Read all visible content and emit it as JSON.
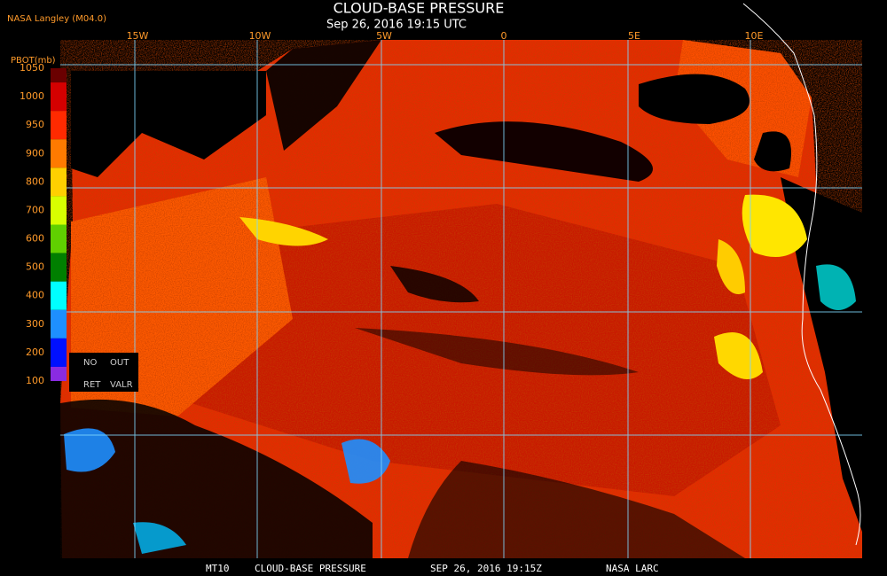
{
  "header": {
    "agency": "NASA Langley (M04.0)",
    "title": "CLOUD-BASE PRESSURE",
    "subtitle": "Sep 26, 2016 19:15 UTC"
  },
  "longitude_labels": [
    "15W",
    "10W",
    "5W",
    "0",
    "5E",
    "10E"
  ],
  "colorbar": {
    "title": "PBOT(mb)",
    "labels": [
      "1050",
      "1000",
      "950",
      "900",
      "800",
      "700",
      "600",
      "500",
      "400",
      "300",
      "200",
      "100"
    ],
    "colors": [
      "#6a0000",
      "#d40000",
      "#ff2a00",
      "#ff7a00",
      "#ffd000",
      "#d8ff00",
      "#60d000",
      "#007f00",
      "#00ffff",
      "#1e8fff",
      "#0010ff",
      "#8a2be2"
    ]
  },
  "legend": [
    "NO",
    "OUT",
    "RET",
    "VALR"
  ],
  "footer": [
    "MT10",
    "CLOUD-BASE PRESSURE",
    "SEP 26, 2016 19:15Z",
    "NASA LARC"
  ]
}
